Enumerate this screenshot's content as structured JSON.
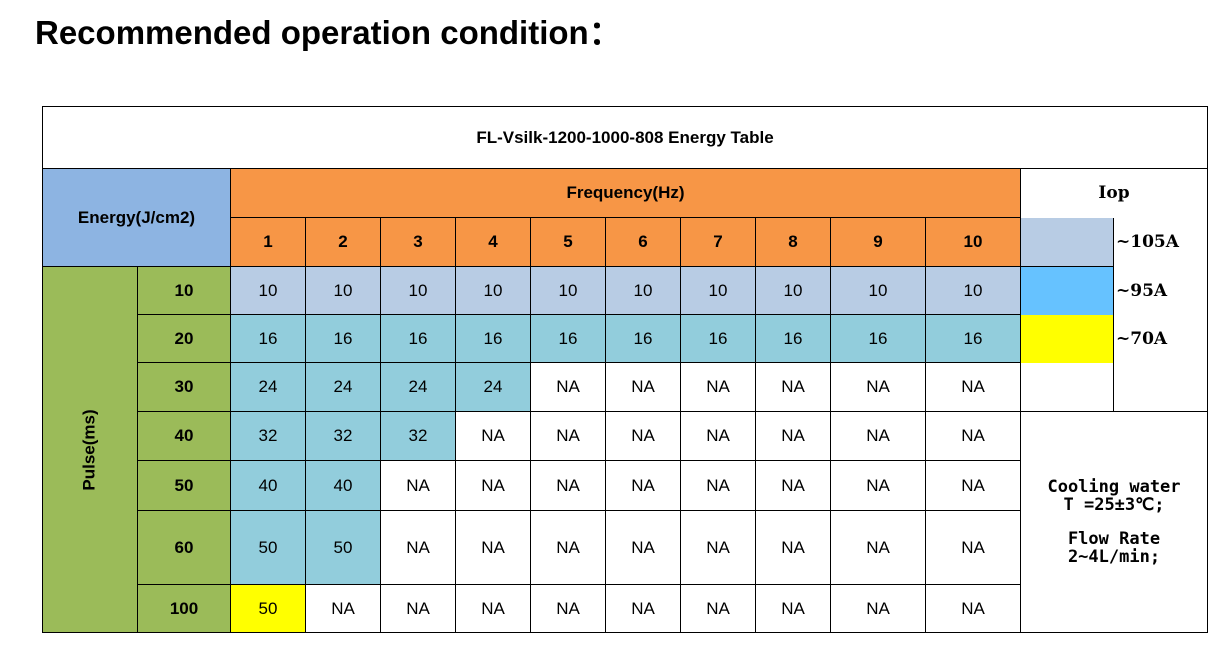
{
  "heading": "Recommended operation condition：",
  "table": {
    "title": "FL-Vsilk-1200-1000-808  Energy Table",
    "energy_label": "Energy(J/cm2)",
    "frequency_label": "Frequency(Hz)",
    "pulse_label": "Pulse(ms)",
    "iop_label": "Iop",
    "frequencies": [
      "1",
      "2",
      "3",
      "4",
      "5",
      "6",
      "7",
      "8",
      "9",
      "10"
    ],
    "rows": [
      {
        "pulse": "10",
        "values": [
          "10",
          "10",
          "10",
          "10",
          "10",
          "10",
          "10",
          "10",
          "10",
          "10"
        ],
        "colors": [
          "light",
          "light",
          "light",
          "light",
          "light",
          "light",
          "light",
          "light",
          "light",
          "light"
        ]
      },
      {
        "pulse": "20",
        "values": [
          "16",
          "16",
          "16",
          "16",
          "16",
          "16",
          "16",
          "16",
          "16",
          "16"
        ],
        "colors": [
          "blue",
          "blue",
          "blue",
          "blue",
          "blue",
          "blue",
          "blue",
          "blue",
          "blue",
          "blue"
        ]
      },
      {
        "pulse": "30",
        "values": [
          "24",
          "24",
          "24",
          "24",
          "NA",
          "NA",
          "NA",
          "NA",
          "NA",
          "NA"
        ],
        "colors": [
          "blue",
          "blue",
          "blue",
          "blue",
          "white",
          "white",
          "white",
          "white",
          "white",
          "white"
        ]
      },
      {
        "pulse": "40",
        "values": [
          "32",
          "32",
          "32",
          "NA",
          "NA",
          "NA",
          "NA",
          "NA",
          "NA",
          "NA"
        ],
        "colors": [
          "blue",
          "blue",
          "blue",
          "white",
          "white",
          "white",
          "white",
          "white",
          "white",
          "white"
        ]
      },
      {
        "pulse": "50",
        "values": [
          "40",
          "40",
          "NA",
          "NA",
          "NA",
          "NA",
          "NA",
          "NA",
          "NA",
          "NA"
        ],
        "colors": [
          "blue",
          "blue",
          "white",
          "white",
          "white",
          "white",
          "white",
          "white",
          "white",
          "white"
        ]
      },
      {
        "pulse": "60",
        "values": [
          "50",
          "50",
          "NA",
          "NA",
          "NA",
          "NA",
          "NA",
          "NA",
          "NA",
          "NA"
        ],
        "colors": [
          "blue",
          "blue",
          "white",
          "white",
          "white",
          "white",
          "white",
          "white",
          "white",
          "white"
        ]
      },
      {
        "pulse": "100",
        "values": [
          "50",
          "NA",
          "NA",
          "NA",
          "NA",
          "NA",
          "NA",
          "NA",
          "NA",
          "NA"
        ],
        "colors": [
          "yellow",
          "white",
          "white",
          "white",
          "white",
          "white",
          "white",
          "white",
          "white",
          "white"
        ]
      }
    ],
    "legend": [
      {
        "label": "~105A",
        "color": "#b8cce4"
      },
      {
        "label": "~95A",
        "color": "#66c2ff"
      },
      {
        "label": "~70A",
        "color": "#ffff00"
      }
    ],
    "notes": {
      "cooling_line1": "Cooling water",
      "cooling_line2": "T =25±3℃;",
      "flow_line1": "Flow Rate",
      "flow_line2": "2~4L/min;"
    }
  },
  "colors": {
    "energy_header": "#8db4e2",
    "frequency_header": "#f79646",
    "pulse_header": "#9bbb59",
    "cell_light": "#b8cce4",
    "cell_blue": "#92cddc",
    "cell_yellow": "#ffff00"
  }
}
